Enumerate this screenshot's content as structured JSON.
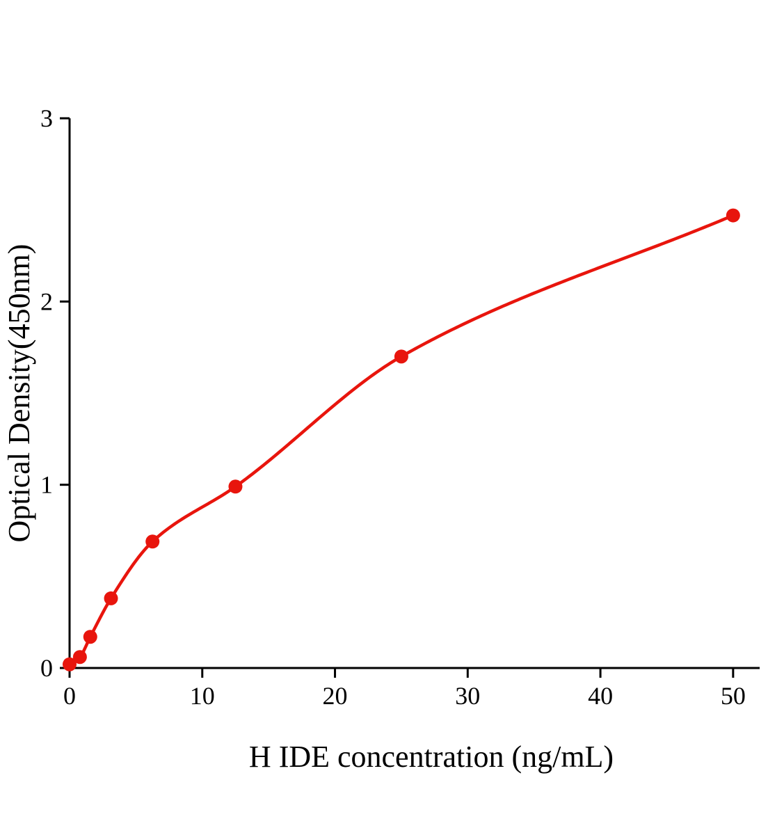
{
  "chart_data": {
    "type": "scatter",
    "title": "",
    "xlabel": "H IDE concentration (ng/mL)",
    "ylabel": "Optical Density(450nm)",
    "x": [
      0,
      0.78,
      1.56,
      3.12,
      6.25,
      12.5,
      25,
      50
    ],
    "y": [
      0.02,
      0.06,
      0.17,
      0.38,
      0.69,
      0.99,
      1.7,
      2.47
    ],
    "curve": "smooth fitted standard curve through points",
    "xlim": [
      0,
      52
    ],
    "ylim": [
      0,
      3
    ],
    "xticks": [
      0,
      10,
      20,
      30,
      40,
      50
    ],
    "yticks": [
      0,
      1,
      2,
      3
    ],
    "point_color": "#e8150d",
    "line_color": "#e8150d",
    "axis_color": "#000000",
    "background": "#ffffff",
    "grid": false,
    "legend": null
  }
}
